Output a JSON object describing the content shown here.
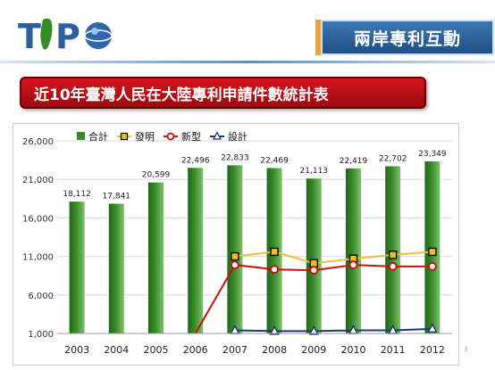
{
  "logo": {
    "text": "TIPO"
  },
  "section_title": "兩岸專利互動",
  "banner_title": "近10年臺灣人民在大陸專利申請件數統計表",
  "page_number": "3",
  "colors": {
    "bar": "#3a8a2a",
    "invention": "#e8c040",
    "utility": "#cc1010",
    "design": "#1f3a6e"
  },
  "chart_data": {
    "type": "bar",
    "categories": [
      "2003",
      "2004",
      "2005",
      "2006",
      "2007",
      "2008",
      "2009",
      "2010",
      "2011",
      "2012"
    ],
    "ylim": [
      1000,
      26000
    ],
    "yticks": [
      "1,000",
      "6,000",
      "11,000",
      "16,000",
      "21,000",
      "26,000"
    ],
    "ytick_values": [
      1000,
      6000,
      11000,
      16000,
      21000,
      26000
    ],
    "legend": [
      "合計",
      "發明",
      "新型",
      "設計"
    ],
    "series": [
      {
        "name": "合計",
        "kind": "bar",
        "values": [
          18112,
          17841,
          20599,
          22496,
          22833,
          22469,
          21113,
          22419,
          22702,
          23349
        ],
        "labels": [
          "18,112",
          "17,841",
          "20,599",
          "22,496",
          "22,833",
          "22,469",
          "21,113",
          "22,419",
          "22,702",
          "23,349"
        ]
      },
      {
        "name": "發明",
        "kind": "line",
        "values": [
          null,
          null,
          null,
          null,
          11000,
          11600,
          10100,
          10700,
          11200,
          11600
        ]
      },
      {
        "name": "新型",
        "kind": "line",
        "values": [
          null,
          null,
          null,
          null,
          9900,
          9300,
          9200,
          9900,
          9700,
          9700
        ]
      },
      {
        "name": "設計",
        "kind": "line",
        "values": [
          null,
          null,
          null,
          null,
          1400,
          1300,
          1300,
          1400,
          1400,
          1600
        ]
      }
    ],
    "dropline_2006": {
      "utility": 1000
    }
  }
}
